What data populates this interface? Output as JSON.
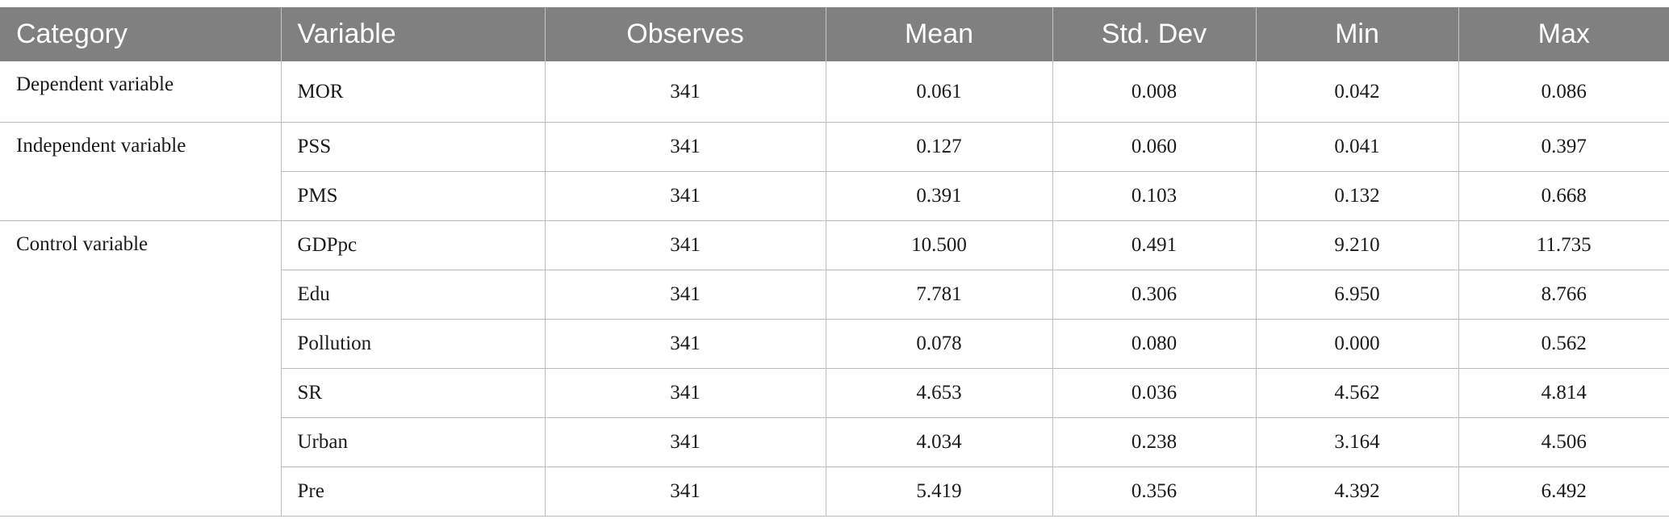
{
  "table": {
    "headers": [
      "Category",
      "Variable",
      "Observes",
      "Mean",
      "Std. Dev",
      "Min",
      "Max"
    ],
    "groups": [
      {
        "category": "Dependent variable",
        "rows": [
          {
            "variable": "MOR",
            "observes": "341",
            "mean": "0.061",
            "std_dev": "0.008",
            "min": "0.042",
            "max": "0.086"
          }
        ]
      },
      {
        "category": "Independent variable",
        "rows": [
          {
            "variable": "PSS",
            "observes": "341",
            "mean": "0.127",
            "std_dev": "0.060",
            "min": "0.041",
            "max": "0.397"
          },
          {
            "variable": "PMS",
            "observes": "341",
            "mean": "0.391",
            "std_dev": "0.103",
            "min": "0.132",
            "max": "0.668"
          }
        ]
      },
      {
        "category": "Control variable",
        "rows": [
          {
            "variable": "GDPpc",
            "observes": "341",
            "mean": "10.500",
            "std_dev": "0.491",
            "min": "9.210",
            "max": "11.735"
          },
          {
            "variable": "Edu",
            "observes": "341",
            "mean": "7.781",
            "std_dev": "0.306",
            "min": "6.950",
            "max": "8.766"
          },
          {
            "variable": "Pollution",
            "observes": "341",
            "mean": "0.078",
            "std_dev": "0.080",
            "min": "0.000",
            "max": "0.562"
          },
          {
            "variable": "SR",
            "observes": "341",
            "mean": "4.653",
            "std_dev": "0.036",
            "min": "4.562",
            "max": "4.814"
          },
          {
            "variable": "Urban",
            "observes": "341",
            "mean": "4.034",
            "std_dev": "0.238",
            "min": "3.164",
            "max": "4.506"
          },
          {
            "variable": "Pre",
            "observes": "341",
            "mean": "5.419",
            "std_dev": "0.356",
            "min": "4.392",
            "max": "6.492"
          }
        ]
      }
    ]
  },
  "colors": {
    "header_background": "#7f807f",
    "header_text": "#ffffff",
    "grid_line": "#bdbdbd"
  }
}
